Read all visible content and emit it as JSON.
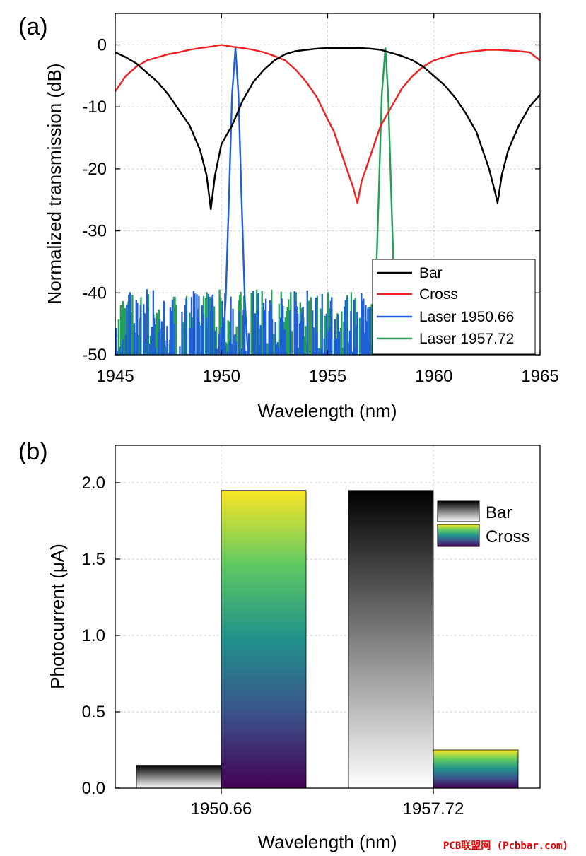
{
  "chart_data": [
    {
      "type": "line",
      "panel_label": "(a)",
      "xlabel": "Wavelength (nm)",
      "ylabel": "Normalized transmission (dB)",
      "xlim": [
        1945,
        1965
      ],
      "ylim": [
        -50,
        2.5
      ],
      "xticks": [
        1945,
        1950,
        1955,
        1960,
        1965
      ],
      "yticks": [
        0,
        -10,
        -20,
        -30,
        -40,
        -50
      ],
      "grid": true,
      "legend_position": "bottom-right",
      "series": [
        {
          "name": "Bar",
          "color": "#000000",
          "x": [
            1945,
            1945.5,
            1946,
            1946.5,
            1947,
            1947.5,
            1948,
            1948.5,
            1949,
            1949.3,
            1949.5,
            1949.7,
            1950,
            1950.5,
            1951,
            1951.5,
            1952,
            1952.5,
            1953,
            1953.5,
            1954,
            1954.5,
            1955,
            1955.5,
            1956,
            1956.5,
            1957,
            1957.5,
            1958,
            1958.5,
            1959,
            1959.5,
            1960,
            1960.5,
            1961,
            1961.5,
            1962,
            1962.3,
            1962.6,
            1962.9,
            1963,
            1963.2,
            1963.5,
            1964,
            1964.5,
            1965
          ],
          "y": [
            -1.2,
            -2,
            -3,
            -4.5,
            -6,
            -8,
            -10.5,
            -13,
            -17,
            -21,
            -26.5,
            -21,
            -16,
            -13,
            -9,
            -6,
            -4,
            -2.5,
            -1.5,
            -1,
            -0.8,
            -0.6,
            -0.5,
            -0.5,
            -0.5,
            -0.5,
            -0.6,
            -0.8,
            -1.3,
            -1.8,
            -2.5,
            -3.5,
            -5,
            -6.5,
            -8.5,
            -11,
            -14,
            -17,
            -20,
            -24,
            -25.5,
            -21,
            -17,
            -13,
            -10,
            -8
          ]
        },
        {
          "name": "Cross",
          "color": "#ee2222",
          "x": [
            1945,
            1945.5,
            1946,
            1946.5,
            1947,
            1947.5,
            1948,
            1948.5,
            1949,
            1949.5,
            1950,
            1950.5,
            1951,
            1951.5,
            1952,
            1952.5,
            1953,
            1953.5,
            1954,
            1954.5,
            1955,
            1955.3,
            1955.6,
            1955.9,
            1956.2,
            1956.4,
            1956.6,
            1956.9,
            1957.2,
            1957.5,
            1958,
            1958.5,
            1959,
            1959.5,
            1960,
            1960.5,
            1961,
            1961.5,
            1962,
            1962.5,
            1963,
            1963.5,
            1964,
            1964.5,
            1965
          ],
          "y": [
            -7.5,
            -5,
            -3.5,
            -2.5,
            -2,
            -1.5,
            -1.2,
            -0.8,
            -0.5,
            -0.3,
            0,
            -0.3,
            -0.5,
            -0.8,
            -1.2,
            -1.8,
            -2.5,
            -4,
            -6,
            -8.5,
            -12,
            -14,
            -17,
            -20,
            -23,
            -25.5,
            -22,
            -19,
            -16,
            -13,
            -10,
            -7,
            -5,
            -3.5,
            -2.5,
            -2,
            -1.5,
            -1.2,
            -1,
            -0.8,
            -0.8,
            -0.9,
            -1,
            -1.2,
            -2.5
          ]
        },
        {
          "name": "Laser 1950.66",
          "color": "#1f5fd6",
          "x": [
            1950.05,
            1950.2,
            1950.35,
            1950.5,
            1950.66,
            1950.8,
            1950.95,
            1951.1,
            1951.25
          ],
          "y": [
            -50,
            -41,
            -25,
            -8,
            -0.5,
            -8,
            -25,
            -41,
            -50
          ]
        },
        {
          "name": "Laser 1957.72",
          "color": "#22a05a",
          "x": [
            1957.1,
            1957.25,
            1957.4,
            1957.55,
            1957.72,
            1957.85,
            1958,
            1958.15,
            1958.3
          ],
          "y": [
            -50,
            -41,
            -25,
            -8,
            -0.5,
            -8,
            -25,
            -41,
            -50
          ]
        }
      ],
      "noise_floor": {
        "min": -50,
        "max": -39.5,
        "x_range": [
          1945,
          1963.5
        ]
      },
      "legend": [
        "Bar",
        "Cross",
        "Laser 1950.66",
        "Laser 1957.72"
      ]
    },
    {
      "type": "bar",
      "panel_label": "(b)",
      "xlabel": "Wavelength (nm)",
      "ylabel": "Photocurrent (μA)",
      "categories": [
        "1950.66",
        "1957.72"
      ],
      "ylim": [
        0,
        2.25
      ],
      "yticks": [
        "0.0",
        "0.5",
        "1.0",
        "1.5",
        "2.0"
      ],
      "ytick_values": [
        0,
        0.5,
        1.0,
        1.5,
        2.0
      ],
      "grid": true,
      "legend_position": "top-right",
      "series": [
        {
          "name": "Bar",
          "values": [
            0.15,
            1.95
          ],
          "gradient": [
            "#000000",
            "#ffffff"
          ]
        },
        {
          "name": "Cross",
          "values": [
            1.95,
            0.25
          ],
          "gradient": [
            "#fde725",
            "#21918c",
            "#440154"
          ]
        }
      ]
    }
  ],
  "watermark": "PCB联盟网 (Pcbbar.com)"
}
